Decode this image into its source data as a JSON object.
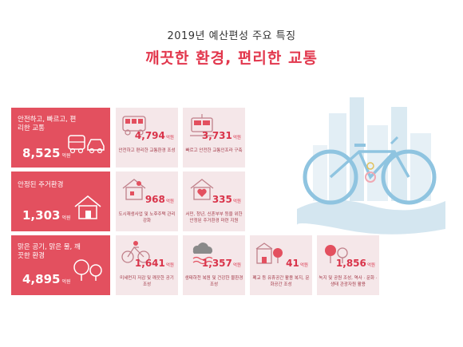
{
  "header": {
    "title": "2019년 예산편성 주요 특징",
    "subtitle": "깨끗한 환경, 편리한 교통"
  },
  "unit": "억원",
  "categories": [
    {
      "name": "안전하고, 빠르고, 편리한 교통",
      "value": "8,525",
      "items": [
        {
          "amount": "4,794",
          "desc": "안전하고 편리한 교통환경 조성",
          "icon": "bus-icon"
        },
        {
          "amount": "3,731",
          "desc": "빠르고 안전한 교통인프라 구축",
          "icon": "train-icon"
        }
      ]
    },
    {
      "name": "안정된 주거환경",
      "value": "1,303",
      "items": [
        {
          "amount": "968",
          "desc": "도시재생사업 및 노후주택 관리 강화",
          "icon": "house-repair-icon"
        },
        {
          "amount": "335",
          "desc": "서민, 청년, 신혼부부 등을 위한 안정된 주거환경 마련 지원",
          "icon": "house-heart-icon"
        }
      ]
    },
    {
      "name": "맑은 공기, 맑은 물, 깨끗한 환경",
      "value": "4,895",
      "items": [
        {
          "amount": "1,641",
          "desc": "미세먼지 저감 및 깨끗한 공기 조성",
          "icon": "bicycle-icon"
        },
        {
          "amount": "1,357",
          "desc": "생태하천 복원 및 건강한 물환경 조성",
          "icon": "water-cloud-icon"
        },
        {
          "amount": "41",
          "desc": "폐교 등 유휴공간 활용 복지, 문화공간 조성",
          "icon": "school-tree-icon"
        },
        {
          "amount": "1,856",
          "desc": "녹지 및 공원 조성, 역사 · 문화 · 생태 관광자원 활용",
          "icon": "trees-icon"
        }
      ]
    }
  ],
  "colors": {
    "accent": "#e2374d",
    "category_bg": "#e3505f",
    "tile_bg": "#f5e7e9",
    "sky_blue": "#cfe3ee"
  }
}
